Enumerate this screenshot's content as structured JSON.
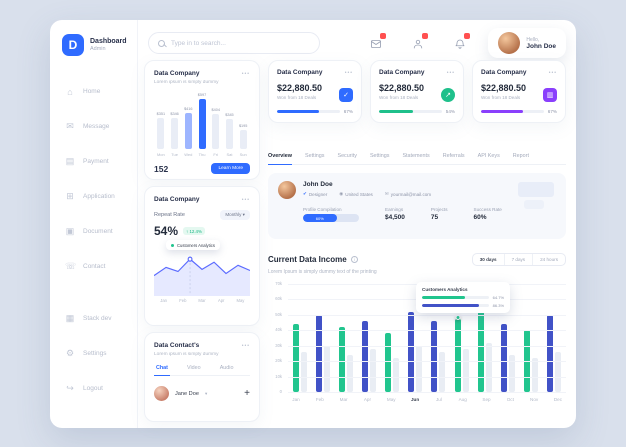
{
  "ui": {
    "menu_dots": "•••"
  },
  "colors": {
    "green": "#21c58e",
    "indigo": "#4152c7",
    "bar_gray": "#e9edf4",
    "blue": "#2f6bff",
    "light_blue": "#9db5ff",
    "purple": "#8a3ffc",
    "red": "#ff5050"
  },
  "app": {
    "brand_initial": "D",
    "brand_name": "Dashboard",
    "brand_sub": "Admin"
  },
  "sidebar": {
    "items": [
      {
        "label": "Home",
        "icon": "home-icon",
        "glyph": "⌂"
      },
      {
        "label": "Message",
        "icon": "message-icon",
        "glyph": "✉"
      },
      {
        "label": "Payment",
        "icon": "payment-icon",
        "glyph": "▤"
      },
      {
        "label": "Application",
        "icon": "application-icon",
        "glyph": "⊞"
      },
      {
        "label": "Document",
        "icon": "document-icon",
        "glyph": "▣"
      },
      {
        "label": "Contact",
        "icon": "contact-icon",
        "glyph": "☏"
      },
      {
        "label": "Stack dev",
        "icon": "stack-icon",
        "glyph": "▦",
        "section_break": true
      },
      {
        "label": "Settings",
        "icon": "settings-icon",
        "glyph": "⚙"
      },
      {
        "label": "Logout",
        "icon": "logout-icon",
        "glyph": "↪"
      }
    ]
  },
  "topbar": {
    "search_placeholder": "Type in to search...",
    "icons": [
      {
        "name": "mail-icon"
      },
      {
        "name": "user-icon"
      },
      {
        "name": "bell-icon"
      }
    ],
    "greeting": "Hello,",
    "user_name": "John Doe"
  },
  "mid": {
    "company_card": {
      "title": "Data Company",
      "subtitle": "Lorem ipsum is simply dummy",
      "footer_value": "152",
      "button": "Learn More",
      "chart_data": {
        "type": "bar",
        "categories": [
          "Mon",
          "Tue",
          "Wed",
          "Thu",
          "Fri",
          "Sat",
          "Sun"
        ],
        "values": [
          351,
          346,
          416,
          597,
          404,
          345,
          195
        ],
        "labels": [
          "$351",
          "$346",
          "$416",
          "$597",
          "$404",
          "$345",
          "$195"
        ],
        "highlight_index": 3,
        "secondary_index": 2
      }
    },
    "repeat_card": {
      "title": "Data Company",
      "metric_label": "Repeat Rate",
      "select_value": "Monthly",
      "value": "54%",
      "delta": "↑ 12.4%",
      "tooltip": "Customers Analytics",
      "chart_data": {
        "type": "area",
        "x": [
          "Jan",
          "Feb",
          "Mar",
          "Apr",
          "May"
        ],
        "values": [
          28,
          44,
          36,
          60,
          40,
          54,
          32,
          48,
          38
        ],
        "ylim": [
          0,
          70
        ],
        "marker_index": 3
      }
    },
    "contacts_card": {
      "title": "Data Contact's",
      "subtitle": "Lorem ipsum is simply dummy",
      "tabs": [
        "Chat",
        "Video",
        "Audio"
      ],
      "active_tab": "Chat",
      "contact_name": "Jane Doe",
      "add_label": "+",
      "chevron": "▾"
    }
  },
  "stats": [
    {
      "title": "Data Company",
      "amount": "$22,880.50",
      "subtitle": "Won from 18 Deals",
      "percent": 67,
      "percent_label": "67%",
      "accent": "#2f6bff",
      "icon": "check-icon",
      "glyph": "✓",
      "shape": "square"
    },
    {
      "title": "Data Company",
      "amount": "$22,880.50",
      "subtitle": "Won from 18 Deals",
      "percent": 54,
      "percent_label": "54%",
      "accent": "#1fc08b",
      "icon": "trend-up-icon",
      "glyph": "↗",
      "shape": "circle"
    },
    {
      "title": "Data Company",
      "amount": "$22,880.50",
      "subtitle": "Won from 18 Deals",
      "percent": 67,
      "percent_label": "67%",
      "accent": "#8a3ffc",
      "icon": "chart-icon",
      "glyph": "▥",
      "shape": "square"
    }
  ],
  "tabs": {
    "items": [
      "Overview",
      "Settings",
      "Security",
      "Settings",
      "Statements",
      "Referrals",
      "API Keys",
      "Report"
    ],
    "active_index": 0
  },
  "profile": {
    "name": "John Doe",
    "badges": [
      {
        "icon": "✔",
        "label": "Designer",
        "color": "#2f6bff",
        "name": "designer-badge"
      },
      {
        "icon": "◉",
        "label": "United States",
        "color": "#99a0b2",
        "name": "location-badge"
      },
      {
        "icon": "✉",
        "label": "yourmail@mail.com",
        "color": "#99a0b2",
        "name": "email-badge"
      }
    ],
    "completion_label": "Profile Compilation",
    "completion": "60%",
    "completion_percent": 60,
    "stats": [
      {
        "label": "Earnings",
        "value": "$4,500"
      },
      {
        "label": "Projects",
        "value": "75"
      },
      {
        "label": "Success Rate",
        "value": "60%"
      }
    ]
  },
  "income": {
    "title": "Current Data Income",
    "ranges": [
      "30 days",
      "7 days",
      "24 hours"
    ],
    "active_range_index": 0,
    "subtitle": "Lorem Ipsum is simply dummy text of the printing",
    "tooltip": {
      "title": "Customers Analytics",
      "bars": [
        {
          "color": "#21c58e",
          "percent": 64,
          "label": "64.7%"
        },
        {
          "color": "#4152c7",
          "percent": 86,
          "label": "86.3%"
        }
      ]
    },
    "chart_data": {
      "type": "bar",
      "categories": [
        "Jan",
        "Feb",
        "Mar",
        "Apr",
        "May",
        "Jun",
        "Jul",
        "Aug",
        "Sep",
        "Oct",
        "Nov",
        "Dec"
      ],
      "series": [
        {
          "name": "primary",
          "values_k": [
            44,
            50,
            42,
            46,
            38,
            52,
            46,
            47,
            58,
            44,
            40,
            50
          ],
          "colors": [
            "green",
            "indigo",
            "green",
            "indigo",
            "green",
            "indigo",
            "indigo",
            "green",
            "green",
            "indigo",
            "green",
            "indigo"
          ]
        },
        {
          "name": "secondary",
          "values_k": [
            26,
            30,
            24,
            28,
            22,
            30,
            26,
            28,
            32,
            24,
            22,
            26
          ]
        }
      ],
      "yticks": [
        "70k",
        "60k",
        "50k",
        "40k",
        "30k",
        "20k",
        "10k",
        "0"
      ],
      "ylim_k": [
        0,
        70
      ],
      "active_month": "Jun",
      "marker_month": "Aug"
    }
  }
}
